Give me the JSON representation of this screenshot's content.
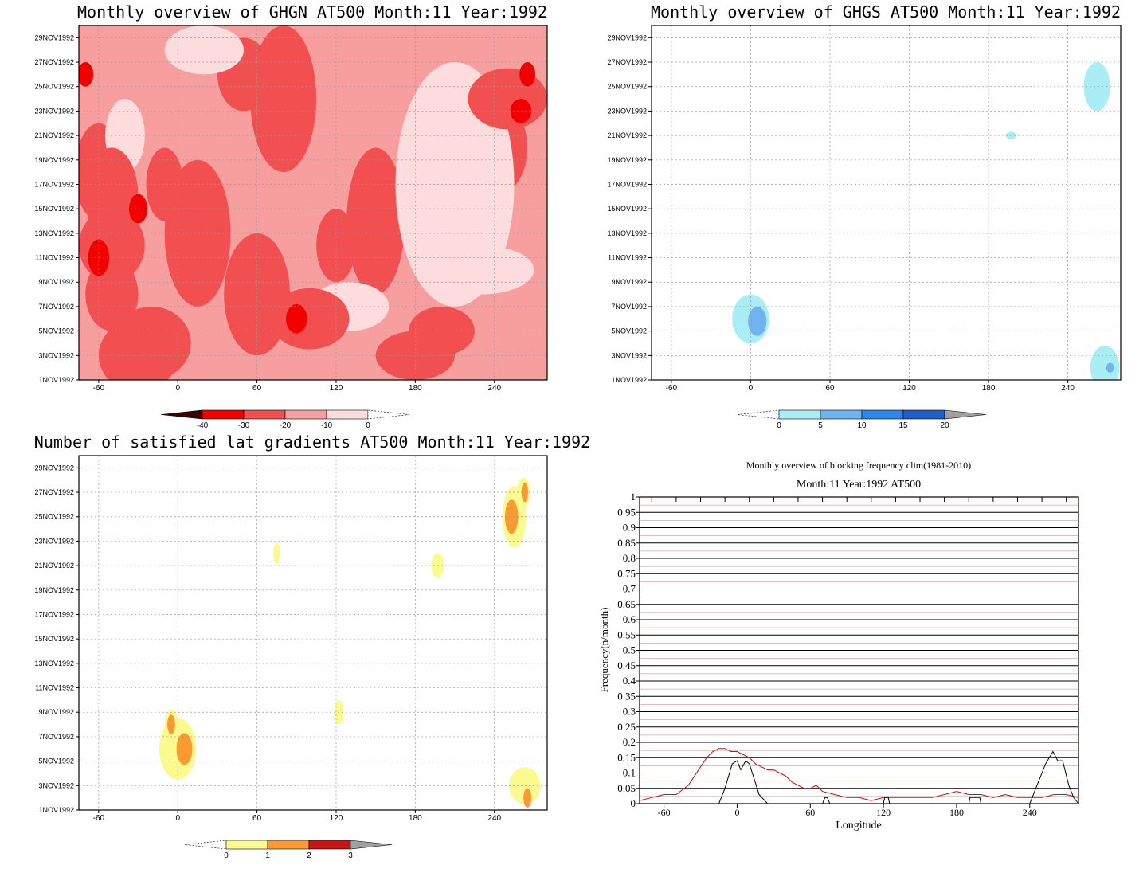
{
  "dates": [
    "1NOV1992",
    "3NOV1992",
    "5NOV1992",
    "7NOV1992",
    "9NOV1992",
    "11NOV1992",
    "13NOV1992",
    "15NOV1992",
    "17NOV1992",
    "19NOV1992",
    "21NOV1992",
    "23NOV1992",
    "25NOV1992",
    "27NOV1992",
    "29NOV1992"
  ],
  "lon_ticks": [
    "-60",
    "0",
    "60",
    "120",
    "180",
    "240"
  ],
  "chart_data": [
    {
      "type": "heatmap",
      "title": "Monthly overview of GHGN AT500 Month:11 Year:1992",
      "xlim": [
        -75,
        280
      ],
      "ylim": [
        1,
        30
      ],
      "colorbar": {
        "labels": [
          "-40",
          "-30",
          "-20",
          "-10",
          "0"
        ],
        "colors": [
          "#3c0000",
          "#f20000",
          "#f25050",
          "#f79e9e",
          "#fcdcdc",
          "#ffffff"
        ]
      },
      "blobs": [
        {
          "x": 210,
          "y": 17,
          "rx": 45,
          "ry": 10,
          "c": 4
        },
        {
          "x": -40,
          "y": 21,
          "rx": 15,
          "ry": 3,
          "c": 4
        },
        {
          "x": 230,
          "y": 10,
          "rx": 40,
          "ry": 2,
          "c": 4
        },
        {
          "x": 130,
          "y": 7,
          "rx": 30,
          "ry": 2,
          "c": 4
        },
        {
          "x": 20,
          "y": 28,
          "rx": 30,
          "ry": 2,
          "c": 4
        },
        {
          "x": 80,
          "y": 24,
          "rx": 25,
          "ry": 6,
          "c": 2
        },
        {
          "x": 15,
          "y": 13,
          "rx": 25,
          "ry": 6,
          "c": 2
        },
        {
          "x": -30,
          "y": 3,
          "rx": 30,
          "ry": 3,
          "c": 2
        },
        {
          "x": 100,
          "y": 6,
          "rx": 30,
          "ry": 2.5,
          "c": 2
        },
        {
          "x": 250,
          "y": 24,
          "rx": 30,
          "ry": 2.5,
          "c": 2
        },
        {
          "x": -50,
          "y": 12,
          "rx": 25,
          "ry": 3,
          "c": 2
        },
        {
          "x": -50,
          "y": 16,
          "rx": 20,
          "ry": 4,
          "c": 2
        },
        {
          "x": 180,
          "y": 3,
          "rx": 30,
          "ry": 2,
          "c": 2
        },
        {
          "x": -60,
          "y": 11,
          "rx": 8,
          "ry": 1.5,
          "c": 1
        },
        {
          "x": -30,
          "y": 15,
          "rx": 7,
          "ry": 1.2,
          "c": 1
        },
        {
          "x": 90,
          "y": 6,
          "rx": 8,
          "ry": 1.2,
          "c": 1
        },
        {
          "x": 260,
          "y": 23,
          "rx": 8,
          "ry": 1,
          "c": 1
        },
        {
          "x": 265,
          "y": 26,
          "rx": 6,
          "ry": 1,
          "c": 1
        },
        {
          "x": -70,
          "y": 26,
          "rx": 6,
          "ry": 1,
          "c": 1
        }
      ]
    },
    {
      "type": "heatmap",
      "title": "Monthly overview of GHGS AT500 Month:11 Year:1992",
      "xlim": [
        -75,
        280
      ],
      "ylim": [
        1,
        30
      ],
      "colorbar": {
        "labels": [
          "0",
          "5",
          "10",
          "15",
          "20"
        ],
        "colors": [
          "#ffffff",
          "#aaeef5",
          "#6fb4f0",
          "#2d86eb",
          "#1f5fc9",
          "#a0a0a0"
        ]
      },
      "blobs": [
        {
          "x": 0,
          "y": 6,
          "rx": 14,
          "ry": 2,
          "c": 1
        },
        {
          "x": 5,
          "y": 5.8,
          "rx": 7,
          "ry": 1.2,
          "c": 2
        },
        {
          "x": 262,
          "y": 25,
          "rx": 10,
          "ry": 2,
          "c": 1
        },
        {
          "x": 268,
          "y": 2,
          "rx": 11,
          "ry": 1.8,
          "c": 1
        },
        {
          "x": 272,
          "y": 2,
          "rx": 3,
          "ry": 0.4,
          "c": 2
        },
        {
          "x": 197,
          "y": 21,
          "rx": 4,
          "ry": 0.3,
          "c": 1
        }
      ]
    },
    {
      "type": "heatmap",
      "title": "Number of satisfied lat gradients AT500 Month:11 Year:1992",
      "xlim": [
        -75,
        280
      ],
      "ylim": [
        1,
        30
      ],
      "colorbar": {
        "labels": [
          "0",
          "1",
          "2",
          "3"
        ],
        "colors": [
          "#ffffff",
          "#fbfa8e",
          "#fb9a32",
          "#c81414",
          "#a0a0a0"
        ]
      },
      "blobs": [
        {
          "x": 0,
          "y": 6,
          "rx": 14,
          "ry": 2.5,
          "c": 1
        },
        {
          "x": -5,
          "y": 8,
          "rx": 5,
          "ry": 1.2,
          "c": 1
        },
        {
          "x": 5,
          "y": 6,
          "rx": 6,
          "ry": 1.3,
          "c": 2
        },
        {
          "x": -5,
          "y": 8,
          "rx": 3,
          "ry": 0.8,
          "c": 2
        },
        {
          "x": 255,
          "y": 25,
          "rx": 9,
          "ry": 2.5,
          "c": 1
        },
        {
          "x": 262,
          "y": 27,
          "rx": 5,
          "ry": 1.2,
          "c": 1
        },
        {
          "x": 253,
          "y": 25,
          "rx": 5,
          "ry": 1.4,
          "c": 2
        },
        {
          "x": 263,
          "y": 27,
          "rx": 2.5,
          "ry": 0.8,
          "c": 2
        },
        {
          "x": 263,
          "y": 3,
          "rx": 12,
          "ry": 1.5,
          "c": 1
        },
        {
          "x": 265,
          "y": 2,
          "rx": 3,
          "ry": 0.8,
          "c": 2
        },
        {
          "x": 75,
          "y": 22,
          "rx": 2.5,
          "ry": 0.9,
          "c": 1
        },
        {
          "x": 197,
          "y": 21,
          "rx": 5,
          "ry": 1,
          "c": 1
        },
        {
          "x": 122,
          "y": 9,
          "rx": 3.5,
          "ry": 1,
          "c": 1
        }
      ]
    },
    {
      "type": "line",
      "title": "Monthly overview of blocking frequency clim(1981-2010)",
      "subtitle": "Month:11 Year:1992  AT500",
      "xlabel": "Longitude",
      "ylabel": "Frequency(n/month)",
      "xlim": [
        -80,
        280
      ],
      "ylim": [
        0,
        1
      ],
      "x_ticks": [
        "-60",
        "0",
        "60",
        "120",
        "180",
        "240"
      ],
      "y_ticks": [
        "0",
        "0.05",
        "0.1",
        "0.15",
        "0.2",
        "0.25",
        "0.3",
        "0.35",
        "0.4",
        "0.45",
        "0.5",
        "0.55",
        "0.6",
        "0.65",
        "0.7",
        "0.75",
        "0.8",
        "0.85",
        "0.9",
        "0.95",
        "1"
      ],
      "series": [
        {
          "color": "#e00000",
          "x": [
            -80,
            -70,
            -60,
            -50,
            -40,
            -30,
            -25,
            -20,
            -15,
            -10,
            -5,
            0,
            5,
            10,
            15,
            20,
            25,
            30,
            35,
            40,
            45,
            50,
            55,
            60,
            65,
            70,
            80,
            90,
            100,
            110,
            120,
            130,
            140,
            150,
            160,
            170,
            180,
            190,
            200,
            210,
            220,
            230,
            240,
            250,
            260,
            270,
            280
          ],
          "y": [
            0.01,
            0.02,
            0.03,
            0.03,
            0.06,
            0.12,
            0.15,
            0.17,
            0.18,
            0.18,
            0.17,
            0.17,
            0.16,
            0.15,
            0.13,
            0.12,
            0.11,
            0.11,
            0.1,
            0.09,
            0.07,
            0.06,
            0.05,
            0.05,
            0.06,
            0.04,
            0.03,
            0.02,
            0.02,
            0.01,
            0.02,
            0.02,
            0.02,
            0.02,
            0.02,
            0.03,
            0.04,
            0.03,
            0.03,
            0.02,
            0.03,
            0.02,
            0.02,
            0.02,
            0.03,
            0.03,
            0.02
          ]
        },
        {
          "color": "#000000",
          "x": [
            -80,
            -15,
            -10,
            -7,
            -4,
            0,
            3,
            7,
            10,
            14,
            18,
            25,
            60,
            70,
            72,
            74,
            76,
            80,
            120,
            121,
            122,
            123,
            124,
            125,
            190,
            191,
            193,
            197,
            199,
            200,
            240,
            245,
            250,
            253,
            256,
            259,
            263,
            267,
            272,
            276,
            280
          ],
          "y": [
            0,
            0,
            0.05,
            0.09,
            0.13,
            0.14,
            0.11,
            0.14,
            0.13,
            0.08,
            0.03,
            0,
            0,
            0,
            0.02,
            0.02,
            0,
            0,
            0,
            0.02,
            0.02,
            0.02,
            0.02,
            0,
            0,
            0.02,
            0.02,
            0.02,
            0.02,
            0,
            0,
            0.05,
            0.1,
            0.13,
            0.15,
            0.17,
            0.14,
            0.14,
            0.06,
            0.02,
            0
          ]
        }
      ]
    }
  ]
}
